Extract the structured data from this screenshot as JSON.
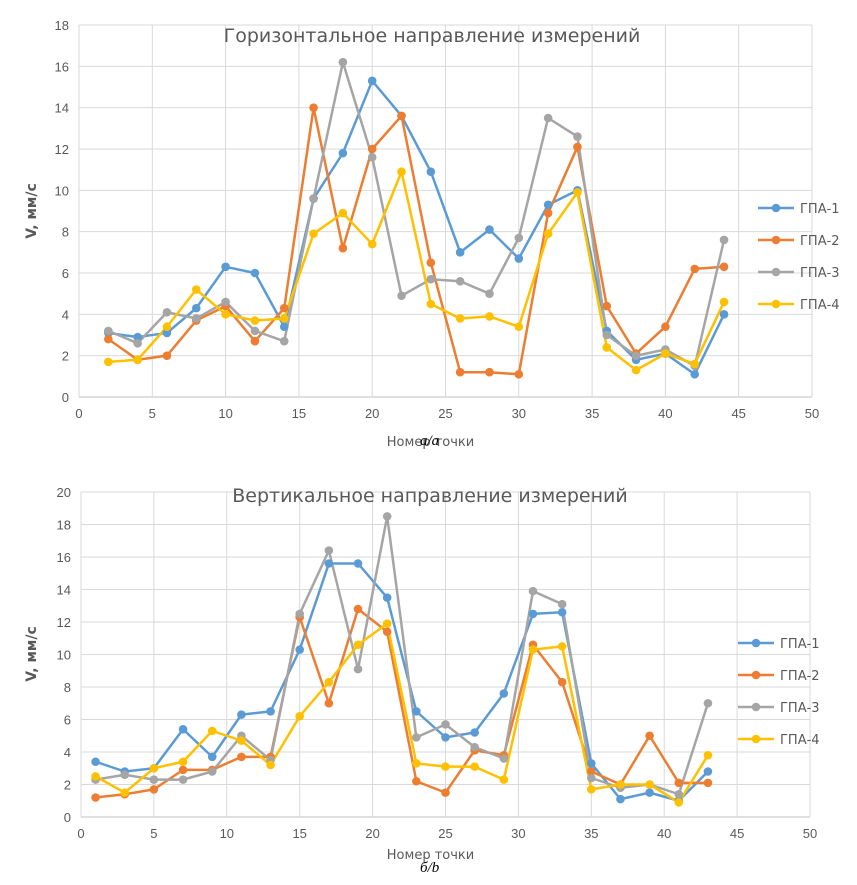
{
  "captions": [
    "a/a",
    "б/b"
  ],
  "chart_data": [
    {
      "type": "line",
      "title": "Горизонтальное направление измерений",
      "xlabel": "Номер точки",
      "ylabel": "V, мм/с",
      "xlim": [
        0,
        50
      ],
      "ylim": [
        0,
        18
      ],
      "xticks": [
        0,
        5,
        10,
        15,
        20,
        25,
        30,
        35,
        40,
        45,
        50
      ],
      "yticks": [
        0,
        2,
        4,
        6,
        8,
        10,
        12,
        14,
        16,
        18
      ],
      "grid": true,
      "legend": "right",
      "x": [
        2,
        4,
        6,
        8,
        10,
        12,
        14,
        16,
        18,
        20,
        22,
        24,
        26,
        28,
        30,
        32,
        34,
        36,
        38,
        40,
        42,
        44
      ],
      "series": [
        {
          "name": "ГПА-1",
          "color": "#5B9BD5",
          "values": [
            3.1,
            2.9,
            3.1,
            4.3,
            6.3,
            6.0,
            3.4,
            9.6,
            11.8,
            15.3,
            13.6,
            10.9,
            7.0,
            8.1,
            6.7,
            9.3,
            10.0,
            3.2,
            1.8,
            2.1,
            1.1,
            4.0
          ]
        },
        {
          "name": "ГПА-2",
          "color": "#ED7D31",
          "values": [
            2.8,
            1.8,
            2.0,
            3.7,
            4.4,
            2.7,
            4.3,
            14.0,
            7.2,
            12.0,
            13.6,
            6.5,
            1.2,
            1.2,
            1.1,
            8.9,
            12.1,
            4.4,
            2.1,
            3.4,
            6.2,
            6.3
          ]
        },
        {
          "name": "ГПА-3",
          "color": "#A5A5A5",
          "values": [
            3.2,
            2.6,
            4.1,
            3.8,
            4.6,
            3.2,
            2.7,
            9.6,
            16.2,
            11.6,
            4.9,
            5.7,
            5.6,
            5.0,
            7.7,
            13.5,
            12.6,
            3.0,
            2.0,
            2.3,
            1.5,
            7.6
          ]
        },
        {
          "name": "ГПА-4",
          "color": "#FFC000",
          "values": [
            1.7,
            1.8,
            3.4,
            5.2,
            4.0,
            3.7,
            3.8,
            7.9,
            8.9,
            7.4,
            10.9,
            4.5,
            3.8,
            3.9,
            3.4,
            7.9,
            9.9,
            2.4,
            1.3,
            2.1,
            1.6,
            4.6
          ]
        }
      ]
    },
    {
      "type": "line",
      "title": "Вертикальное направление измерений",
      "xlabel": "Номер точки",
      "ylabel": "V, мм/с",
      "xlim": [
        0,
        50
      ],
      "ylim": [
        0,
        20
      ],
      "xticks": [
        0,
        5,
        10,
        15,
        20,
        25,
        30,
        35,
        40,
        45,
        50
      ],
      "yticks": [
        0,
        2,
        4,
        6,
        8,
        10,
        12,
        14,
        16,
        18,
        20
      ],
      "grid": true,
      "legend": "right",
      "x": [
        1,
        3,
        5,
        7,
        9,
        11,
        13,
        15,
        17,
        19,
        21,
        23,
        25,
        27,
        29,
        31,
        33,
        35,
        37,
        39,
        41,
        43
      ],
      "series": [
        {
          "name": "ГПА-1",
          "color": "#5B9BD5",
          "values": [
            3.4,
            2.8,
            3.0,
            5.4,
            3.7,
            6.3,
            6.5,
            10.3,
            15.6,
            15.6,
            13.5,
            6.5,
            4.9,
            5.2,
            7.6,
            12.5,
            12.6,
            3.3,
            1.1,
            1.5,
            1.0,
            2.8
          ]
        },
        {
          "name": "ГПА-2",
          "color": "#ED7D31",
          "values": [
            1.2,
            1.4,
            1.7,
            2.9,
            2.9,
            3.7,
            3.7,
            12.3,
            7.0,
            12.8,
            11.4,
            2.2,
            1.5,
            4.1,
            3.8,
            10.6,
            8.3,
            2.8,
            2.0,
            5.0,
            2.1,
            2.1
          ]
        },
        {
          "name": "ГПА-3",
          "color": "#A5A5A5",
          "values": [
            2.3,
            2.6,
            2.3,
            2.3,
            2.8,
            5.0,
            3.5,
            12.5,
            16.4,
            9.1,
            18.5,
            4.9,
            5.7,
            4.3,
            3.6,
            13.9,
            13.1,
            2.4,
            1.8,
            2.0,
            1.4,
            7.0
          ]
        },
        {
          "name": "ГПА-4",
          "color": "#FFC000",
          "values": [
            2.5,
            1.5,
            3.0,
            3.4,
            5.3,
            4.7,
            3.2,
            6.2,
            8.3,
            10.6,
            11.9,
            3.3,
            3.1,
            3.1,
            2.3,
            10.3,
            10.5,
            1.7,
            2.0,
            2.0,
            0.9,
            3.8
          ]
        }
      ]
    }
  ]
}
